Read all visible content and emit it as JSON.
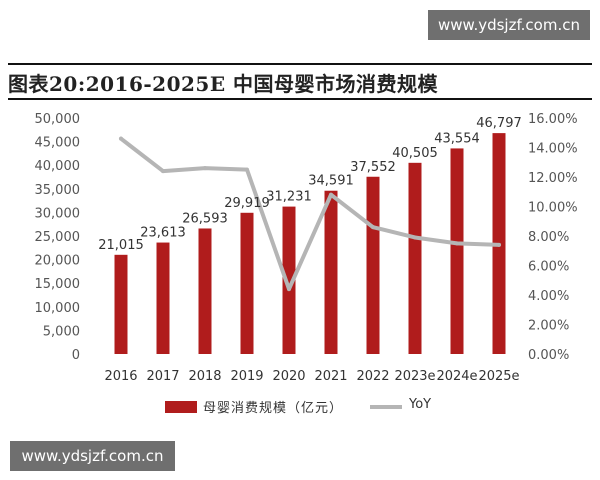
{
  "watermark_top": "www.ydsjzf.com.cn",
  "watermark_bottom": "www.ydsjzf.com.cn",
  "title": "图表20:2016-2025E 中国母婴市场消费规模",
  "chart_data": {
    "type": "bar",
    "categories": [
      "2016",
      "2017",
      "2018",
      "2019",
      "2020",
      "2021",
      "2022",
      "2023e",
      "2024e",
      "2025e"
    ],
    "series": [
      {
        "name": "母婴消费规模（亿元）",
        "type": "bar",
        "axis": "left",
        "values": [
          21015,
          23613,
          26593,
          29919,
          31231,
          34591,
          37552,
          40505,
          43554,
          46797
        ],
        "labels": [
          "21,015",
          "23,613",
          "26,593",
          "29,919",
          "31,231",
          "34,591",
          "37,552",
          "40,505",
          "43,554",
          "46,797"
        ],
        "color": "#b01c1c"
      },
      {
        "name": "YoY",
        "type": "line",
        "axis": "right",
        "values": [
          14.6,
          12.4,
          12.6,
          12.5,
          4.4,
          10.8,
          8.6,
          7.9,
          7.5,
          7.4
        ],
        "color": "#b5b5b5"
      }
    ],
    "y_left": {
      "min": 0,
      "max": 50000,
      "ticks": [
        "0",
        "5,000",
        "10,000",
        "15,000",
        "20,000",
        "25,000",
        "30,000",
        "35,000",
        "40,000",
        "45,000",
        "50,000"
      ]
    },
    "y_right": {
      "min": 0,
      "max": 16,
      "ticks": [
        "0.00%",
        "2.00%",
        "4.00%",
        "6.00%",
        "8.00%",
        "10.00%",
        "12.00%",
        "14.00%",
        "16.00%"
      ]
    },
    "grid": false,
    "legend": "bottom"
  }
}
